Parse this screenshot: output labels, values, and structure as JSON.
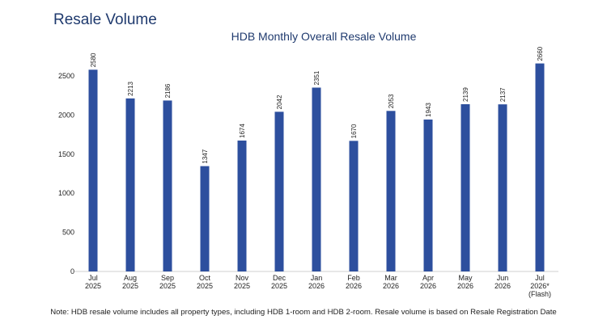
{
  "page": {
    "heading": "Resale Volume",
    "note": "Note: HDB resale volume includes all property types, including HDB 1-room and HDB 2-room. Resale volume is based on Resale Registration Date"
  },
  "chart_data": {
    "type": "bar",
    "title": "HDB Monthly Overall Resale Volume",
    "xlabel": "",
    "ylabel": "",
    "ylim": [
      0,
      2800
    ],
    "yticks": [
      0,
      500,
      1000,
      1500,
      2000,
      2500
    ],
    "grid": false,
    "legend": "none",
    "bar_color": "#2d4f9e",
    "categories": [
      [
        "Jul",
        "2025"
      ],
      [
        "Aug",
        "2025"
      ],
      [
        "Sep",
        "2025"
      ],
      [
        "Oct",
        "2025"
      ],
      [
        "Nov",
        "2025"
      ],
      [
        "Dec",
        "2025"
      ],
      [
        "Jan",
        "2026"
      ],
      [
        "Feb",
        "2026"
      ],
      [
        "Mar",
        "2026"
      ],
      [
        "Apr",
        "2026"
      ],
      [
        "May",
        "2026"
      ],
      [
        "Jun",
        "2026"
      ],
      [
        "Jul",
        "2026*",
        "(Flash)"
      ]
    ],
    "values": [
      2580,
      2213,
      2186,
      1347,
      1674,
      2042,
      2351,
      1670,
      2053,
      1943,
      2139,
      2137,
      2660
    ]
  }
}
